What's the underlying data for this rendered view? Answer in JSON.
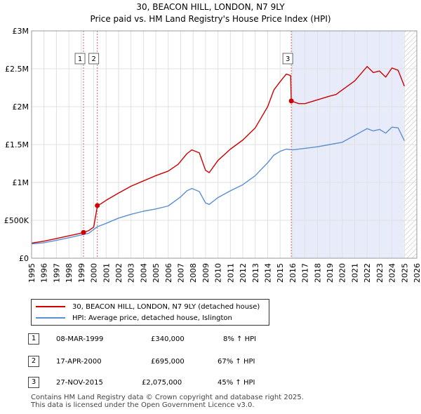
{
  "header": {
    "title": "30, BEACON HILL, LONDON, N7 9LY",
    "subtitle": "Price paid vs. HM Land Registry's House Price Index (HPI)"
  },
  "chart_data": {
    "type": "line",
    "title": "30, BEACON HILL, LONDON, N7 9LY",
    "subtitle": "Price paid vs. HM Land Registry's House Price Index (HPI)",
    "xlabel": "",
    "ylabel": "",
    "xlim": [
      1995,
      2026
    ],
    "ylim": [
      0,
      3000000
    ],
    "x_ticks": [
      1995,
      1996,
      1997,
      1998,
      1999,
      2000,
      2001,
      2002,
      2003,
      2004,
      2005,
      2006,
      2007,
      2008,
      2009,
      2010,
      2011,
      2012,
      2013,
      2014,
      2015,
      2016,
      2017,
      2018,
      2019,
      2020,
      2021,
      2022,
      2023,
      2024,
      2025,
      2026
    ],
    "y_ticks": [
      {
        "value": 0,
        "label": "£0"
      },
      {
        "value": 500000,
        "label": "£500K"
      },
      {
        "value": 1000000,
        "label": "£1M"
      },
      {
        "value": 1500000,
        "label": "£1.5M"
      },
      {
        "value": 2000000,
        "label": "£2M"
      },
      {
        "value": 2500000,
        "label": "£2.5M"
      },
      {
        "value": 3000000,
        "label": "£3M"
      }
    ],
    "grid": true,
    "shaded_region": {
      "from": 2015.9,
      "to": 2024.95,
      "color": "#e8ecfa"
    },
    "hatched_region": {
      "from": 2024.95,
      "to": 2026
    },
    "series": [
      {
        "name": "30, BEACON HILL, LONDON, N7 9LY (detached house)",
        "color": "#cc0000",
        "x": [
          1995.0,
          1996.0,
          1997.0,
          1998.0,
          1998.7,
          1999.18,
          1999.6,
          2000.0,
          2000.3,
          2000.6,
          2001.0,
          2002.0,
          2003.0,
          2004.0,
          2005.0,
          2006.0,
          2006.8,
          2007.5,
          2007.9,
          2008.5,
          2009.0,
          2009.3,
          2010.0,
          2011.0,
          2012.0,
          2013.0,
          2014.0,
          2014.5,
          2015.0,
          2015.5,
          2015.85,
          2015.9,
          2016.5,
          2017.0,
          2018.0,
          2019.0,
          2019.5,
          2020.0,
          2021.0,
          2022.0,
          2022.5,
          2023.0,
          2023.5,
          2024.0,
          2024.5,
          2025.0
        ],
        "y": [
          200000,
          225000,
          260000,
          295000,
          320000,
          340000,
          365000,
          410000,
          695000,
          720000,
          765000,
          860000,
          950000,
          1020000,
          1090000,
          1150000,
          1240000,
          1380000,
          1430000,
          1390000,
          1160000,
          1130000,
          1290000,
          1440000,
          1560000,
          1720000,
          2000000,
          2220000,
          2330000,
          2430000,
          2410000,
          2075000,
          2040000,
          2040000,
          2090000,
          2140000,
          2160000,
          2220000,
          2340000,
          2530000,
          2450000,
          2470000,
          2390000,
          2510000,
          2480000,
          2270000
        ]
      },
      {
        "name": "HPI: Average price, detached house, Islington",
        "color": "#5b8fd1",
        "x": [
          1995.0,
          1996.0,
          1997.0,
          1998.0,
          1998.7,
          1999.18,
          1999.6,
          2000.0,
          2000.3,
          2001.0,
          2002.0,
          2003.0,
          2004.0,
          2005.0,
          2006.0,
          2007.0,
          2007.5,
          2007.9,
          2008.5,
          2009.0,
          2009.3,
          2010.0,
          2011.0,
          2012.0,
          2013.0,
          2014.0,
          2014.5,
          2015.0,
          2015.5,
          2016.0,
          2017.0,
          2018.0,
          2019.0,
          2020.0,
          2021.0,
          2022.0,
          2022.5,
          2023.0,
          2023.5,
          2024.0,
          2024.5,
          2025.0
        ],
        "y": [
          190000,
          205000,
          235000,
          270000,
          295000,
          314000,
          330000,
          380000,
          416000,
          460000,
          530000,
          580000,
          620000,
          650000,
          690000,
          810000,
          890000,
          920000,
          880000,
          730000,
          710000,
          800000,
          890000,
          970000,
          1090000,
          1260000,
          1360000,
          1410000,
          1440000,
          1430000,
          1450000,
          1470000,
          1500000,
          1530000,
          1620000,
          1710000,
          1680000,
          1700000,
          1650000,
          1730000,
          1720000,
          1550000
        ]
      }
    ],
    "markers": [
      {
        "id": "1",
        "x": 1999.18,
        "y": 340000
      },
      {
        "id": "2",
        "x": 2000.29,
        "y": 695000
      },
      {
        "id": "3",
        "x": 2015.9,
        "y": 2075000
      }
    ]
  },
  "legend": {
    "items": [
      {
        "label": "30, BEACON HILL, LONDON, N7 9LY (detached house)",
        "color": "#cc0000"
      },
      {
        "label": "HPI: Average price, detached house, Islington",
        "color": "#5b8fd1"
      }
    ]
  },
  "transactions": [
    {
      "num": "1",
      "date": "08-MAR-1999",
      "price": "£340,000",
      "hpi": "8% ↑ HPI"
    },
    {
      "num": "2",
      "date": "17-APR-2000",
      "price": "£695,000",
      "hpi": "67% ↑ HPI"
    },
    {
      "num": "3",
      "date": "27-NOV-2015",
      "price": "£2,075,000",
      "hpi": "45% ↑ HPI"
    }
  ],
  "footer": {
    "line1": "Contains HM Land Registry data © Crown copyright and database right 2025.",
    "line2": "This data is licensed under the Open Government Licence v3.0."
  }
}
